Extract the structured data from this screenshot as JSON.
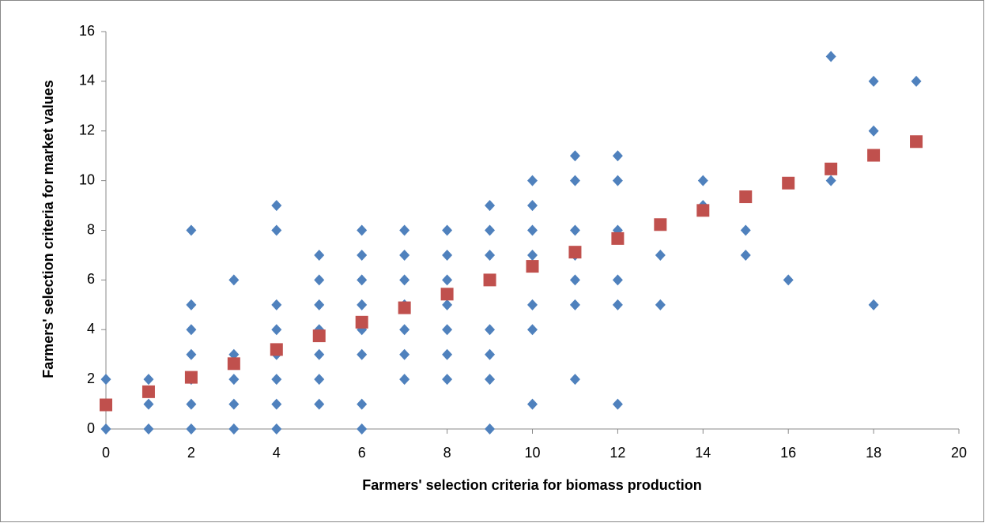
{
  "chart_data": {
    "type": "scatter",
    "x_label": "Farmers' selection criteria for biomass production",
    "y_label": "Farmers' selection criteria for market values",
    "xlim": [
      0,
      20
    ],
    "xticks": [
      0,
      2,
      4,
      6,
      8,
      10,
      12,
      14,
      16,
      18,
      20
    ],
    "ylim": [
      0,
      16
    ],
    "yticks": [
      0,
      2,
      4,
      6,
      8,
      10,
      12,
      14,
      16
    ],
    "grid": false,
    "series": [
      {
        "color": "#4f81bd",
        "marker": "diamond",
        "x": [
          0,
          0,
          1,
          1,
          1,
          2,
          2,
          2,
          2,
          2,
          2,
          2,
          3,
          3,
          3,
          3,
          3,
          4,
          4,
          4,
          4,
          4,
          4,
          4,
          4,
          5,
          5,
          5,
          5,
          5,
          5,
          5,
          6,
          6,
          6,
          6,
          6,
          6,
          6,
          6,
          7,
          7,
          7,
          7,
          7,
          7,
          7,
          8,
          8,
          8,
          8,
          8,
          8,
          8,
          9,
          9,
          9,
          9,
          9,
          9,
          9,
          9,
          10,
          10,
          10,
          10,
          10,
          10,
          10,
          11,
          11,
          11,
          11,
          11,
          11,
          11,
          12,
          12,
          12,
          12,
          12,
          12,
          13,
          13,
          14,
          14,
          15,
          15,
          16,
          17,
          17,
          18,
          18,
          18,
          19
        ],
        "y": [
          0,
          2,
          0,
          1,
          2,
          0,
          1,
          2,
          3,
          4,
          5,
          8,
          0,
          1,
          2,
          3,
          6,
          0,
          1,
          2,
          3,
          4,
          5,
          8,
          9,
          1,
          2,
          3,
          4,
          5,
          6,
          7,
          0,
          1,
          3,
          4,
          5,
          6,
          7,
          8,
          2,
          3,
          4,
          5,
          6,
          7,
          8,
          2,
          3,
          4,
          5,
          6,
          7,
          8,
          0,
          2,
          3,
          4,
          6,
          7,
          8,
          9,
          1,
          4,
          5,
          7,
          8,
          9,
          10,
          2,
          5,
          6,
          7,
          8,
          10,
          11,
          1,
          5,
          6,
          8,
          10,
          11,
          5,
          7,
          9,
          10,
          7,
          8,
          6,
          10,
          15,
          5,
          12,
          14,
          14
        ]
      },
      {
        "color": "#c0504d",
        "marker": "square",
        "x": [
          0,
          1,
          2,
          3,
          4,
          5,
          6,
          7,
          8,
          9,
          10,
          11,
          12,
          13,
          14,
          15,
          16,
          17,
          18,
          19
        ],
        "y": [
          0.97,
          1.5,
          2.08,
          2.63,
          3.2,
          3.75,
          4.3,
          4.88,
          5.43,
          6.0,
          6.55,
          7.12,
          7.67,
          8.23,
          8.8,
          9.35,
          9.9,
          10.47,
          11.02,
          11.57
        ]
      }
    ]
  }
}
